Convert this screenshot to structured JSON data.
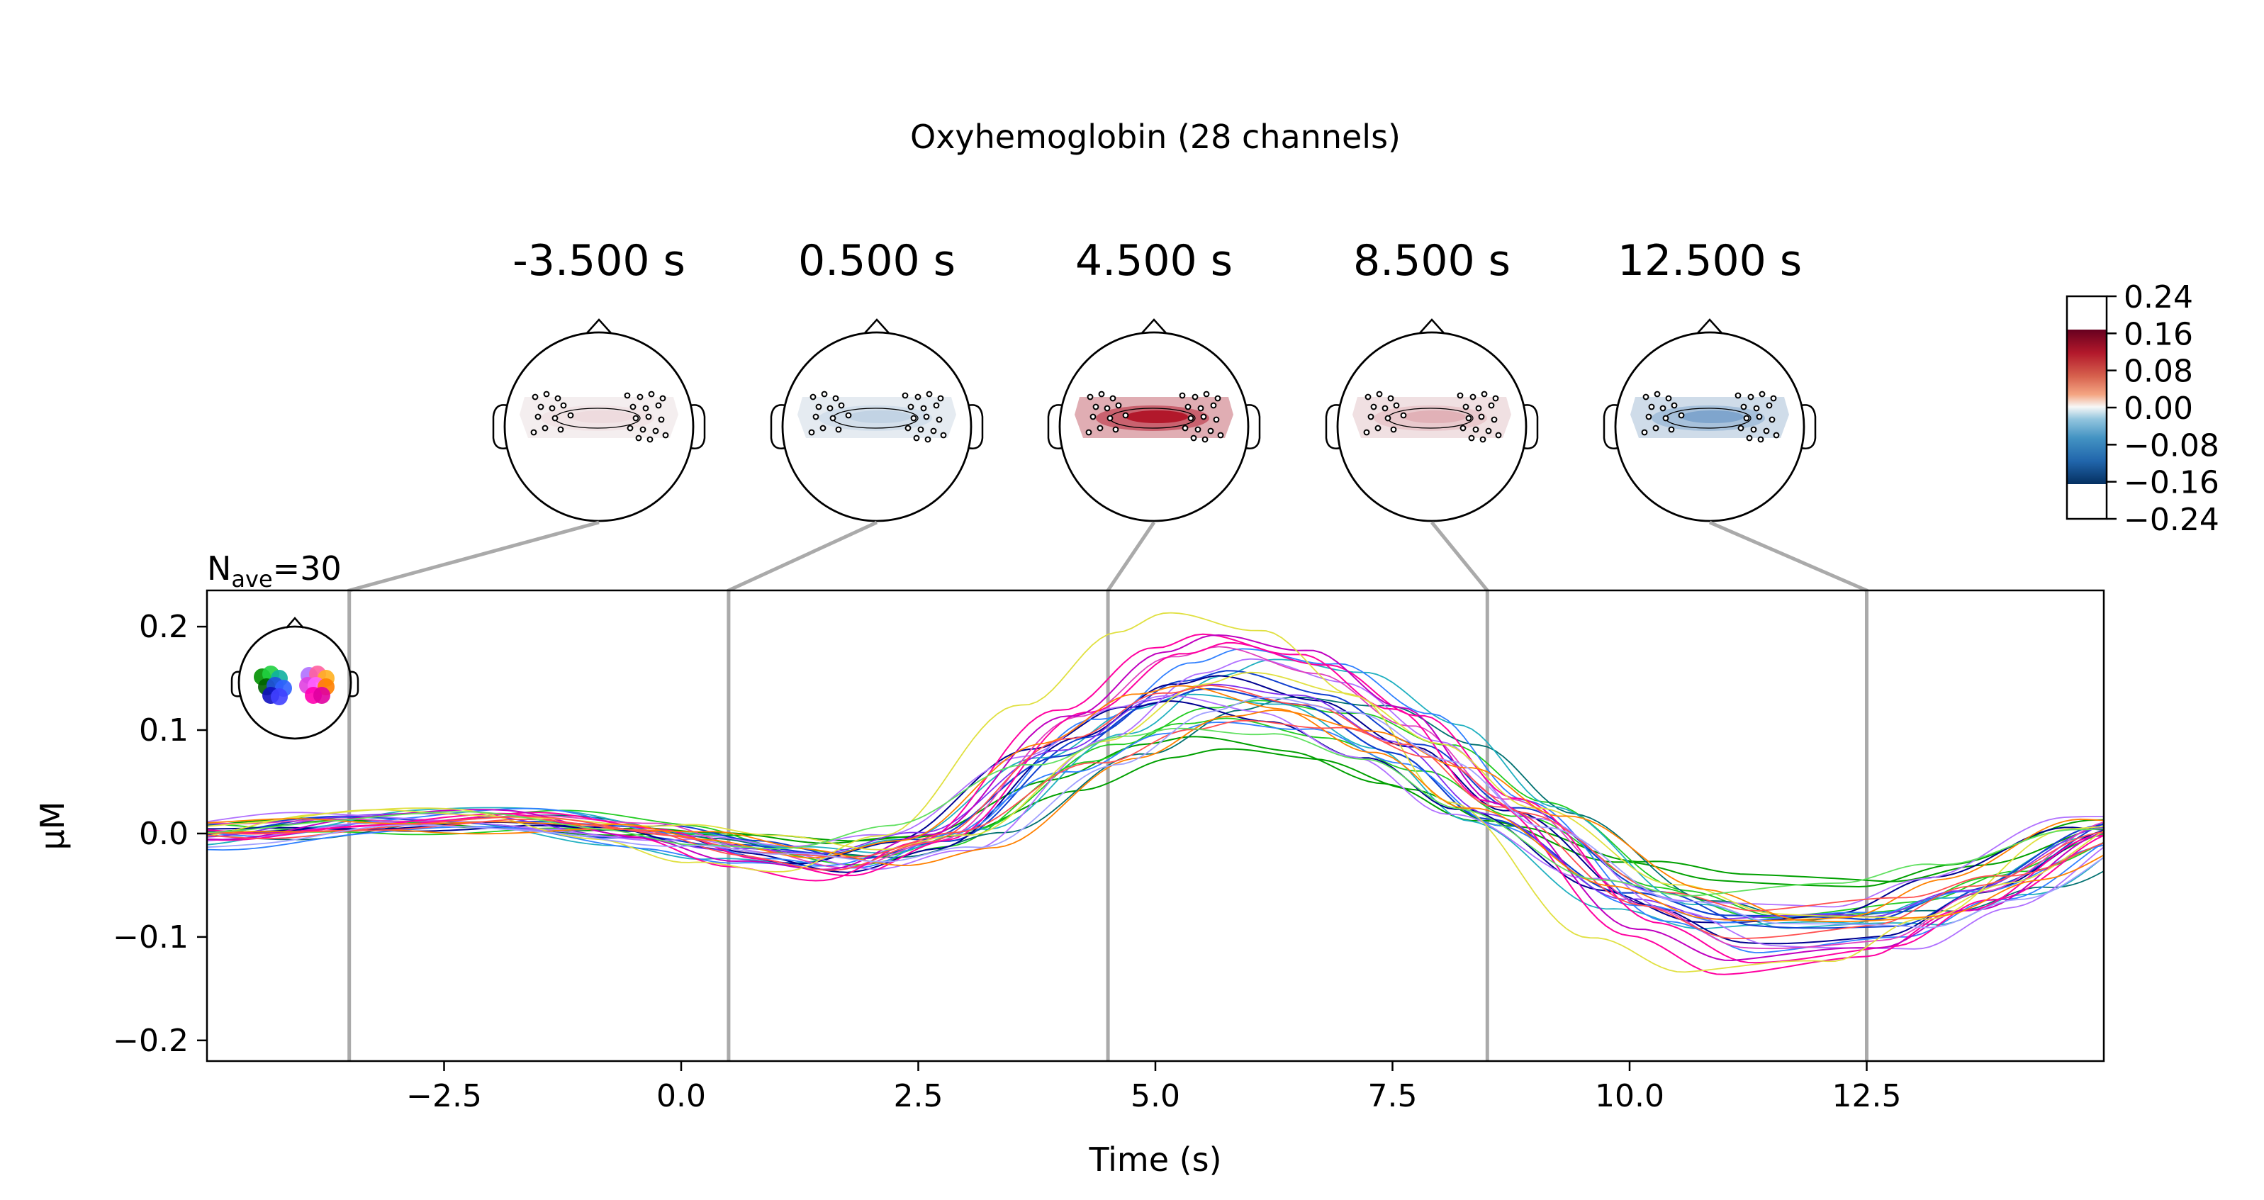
{
  "suptitle": "Oxyhemoglobin (28 channels)",
  "nave": {
    "prefix": "N",
    "sub": "ave",
    "suffix": "=30"
  },
  "colors": {
    "guide": "#aaaaaa",
    "positive": "#b2182b",
    "negative": "#2166ac",
    "neutral": "#f7f7f7",
    "sensor_groups": [
      "#00a000",
      "#1ad020",
      "#3030e0",
      "#8030f0",
      "#f0e040",
      "#ff8000",
      "#ff00a0",
      "#b070ff"
    ]
  },
  "topomaps": [
    {
      "label": "-3.500 s",
      "time": -3.5,
      "amp": 0.02
    },
    {
      "label": "0.500 s",
      "time": 0.5,
      "amp": -0.04
    },
    {
      "label": "4.500 s",
      "time": 4.5,
      "amp": 0.16
    },
    {
      "label": "8.500 s",
      "time": 8.5,
      "amp": 0.05
    },
    {
      "label": "12.500 s",
      "time": 12.5,
      "amp": -0.09
    }
  ],
  "colorbar": {
    "ticks": [
      "0.24",
      "0.16",
      "0.08",
      "0.00",
      "−0.08",
      "−0.16",
      "−0.24"
    ],
    "range": [
      -0.24,
      0.24
    ]
  },
  "chart_data": {
    "type": "line",
    "title": "Oxyhemoglobin (28 channels)",
    "xlabel": "Time (s)",
    "ylabel": "μM",
    "xlim": [
      -5,
      15
    ],
    "ylim": [
      -0.22,
      0.235
    ],
    "xticks": [
      -2.5,
      0.0,
      2.5,
      5.0,
      7.5,
      10.0,
      12.5
    ],
    "xtick_labels": [
      "−2.5",
      "0.0",
      "2.5",
      "5.0",
      "7.5",
      "10.0",
      "12.5"
    ],
    "yticks": [
      0.2,
      0.1,
      0.0,
      -0.1,
      -0.2
    ],
    "ytick_labels": [
      "0.2",
      "0.1",
      "0.0",
      "−0.1",
      "−0.2"
    ],
    "vlines": [
      -3.5,
      0.5,
      4.5,
      8.5,
      12.5
    ],
    "series_template_x": [
      -5,
      -3.5,
      -2,
      -0.5,
      0.5,
      1.5,
      2.5,
      4,
      5,
      5.5,
      6.5,
      7.5,
      8.5,
      10,
      11,
      12.5,
      13.5,
      15
    ],
    "series_template_y": [
      0.0,
      0.01,
      0.012,
      0.0,
      -0.015,
      -0.025,
      -0.005,
      0.08,
      0.125,
      0.135,
      0.12,
      0.08,
      0.02,
      -0.06,
      -0.085,
      -0.08,
      -0.05,
      0.005
    ],
    "series": [
      {
        "color": "#00a000",
        "gain": 0.55,
        "shift": 0.2,
        "offset": 0.002,
        "lw": 2.0
      },
      {
        "color": "#00a000",
        "gain": 0.62,
        "shift": -0.1,
        "offset": 0.004,
        "lw": 2.0
      },
      {
        "color": "#22cc22",
        "gain": 0.85,
        "shift": 0.3,
        "offset": -0.004,
        "lw": 1.8
      },
      {
        "color": "#22cc22",
        "gain": 0.95,
        "shift": 0.6,
        "offset": 0.006,
        "lw": 1.8
      },
      {
        "color": "#007070",
        "gain": 1.0,
        "shift": 0.9,
        "offset": 0.0,
        "lw": 1.8
      },
      {
        "color": "#20b0c0",
        "gain": 1.2,
        "shift": 0.7,
        "offset": 0.006,
        "lw": 1.8
      },
      {
        "color": "#20b0c0",
        "gain": 1.05,
        "shift": -0.2,
        "offset": -0.006,
        "lw": 1.8
      },
      {
        "color": "#1040d0",
        "gain": 1.0,
        "shift": 0.0,
        "offset": 0.0,
        "lw": 2.2
      },
      {
        "color": "#1040d0",
        "gain": 1.1,
        "shift": 0.3,
        "offset": 0.004,
        "lw": 2.0
      },
      {
        "color": "#000090",
        "gain": 1.15,
        "shift": 0.2,
        "offset": -0.004,
        "lw": 2.0
      },
      {
        "color": "#000090",
        "gain": 0.95,
        "shift": -0.3,
        "offset": 0.0,
        "lw": 2.0
      },
      {
        "color": "#3080ff",
        "gain": 1.35,
        "shift": 0.4,
        "offset": 0.002,
        "lw": 1.8
      },
      {
        "color": "#3080ff",
        "gain": 0.9,
        "shift": 0.1,
        "offset": -0.01,
        "lw": 1.8
      },
      {
        "color": "#8030f0",
        "gain": 1.05,
        "shift": 0.0,
        "offset": 0.002,
        "lw": 1.8
      },
      {
        "color": "#b070ff",
        "gain": 1.25,
        "shift": 0.5,
        "offset": -0.006,
        "lw": 1.8
      },
      {
        "color": "#b070ff",
        "gain": 0.9,
        "shift": -0.4,
        "offset": 0.006,
        "lw": 1.8
      },
      {
        "color": "#e040c0",
        "gain": 1.3,
        "shift": 0.2,
        "offset": 0.004,
        "lw": 1.8
      },
      {
        "color": "#ff00a0",
        "gain": 1.4,
        "shift": 0.3,
        "offset": 0.0,
        "lw": 2.0
      },
      {
        "color": "#ff00a0",
        "gain": 1.5,
        "shift": 0.0,
        "offset": -0.004,
        "lw": 2.0
      },
      {
        "color": "#c000c0",
        "gain": 1.45,
        "shift": 0.1,
        "offset": 0.0,
        "lw": 2.0
      },
      {
        "color": "#e0e040",
        "gain": 1.6,
        "shift": -0.4,
        "offset": 0.0,
        "lw": 1.8
      },
      {
        "color": "#e0e040",
        "gain": 1.05,
        "shift": 0.5,
        "offset": 0.008,
        "lw": 1.8
      },
      {
        "color": "#ff8000",
        "gain": 0.9,
        "shift": 0.8,
        "offset": -0.004,
        "lw": 1.8
      },
      {
        "color": "#ff8000",
        "gain": 1.0,
        "shift": -0.2,
        "offset": 0.004,
        "lw": 1.8
      },
      {
        "color": "#ff5050",
        "gain": 1.1,
        "shift": 0.1,
        "offset": -0.002,
        "lw": 1.8
      },
      {
        "color": "#ff5050",
        "gain": 0.85,
        "shift": 0.4,
        "offset": 0.0,
        "lw": 1.8
      },
      {
        "color": "#60e060",
        "gain": 0.75,
        "shift": -0.3,
        "offset": 0.006,
        "lw": 1.8
      },
      {
        "color": "#a0a0ff",
        "gain": 1.0,
        "shift": 0.6,
        "offset": -0.008,
        "lw": 1.8
      }
    ]
  }
}
